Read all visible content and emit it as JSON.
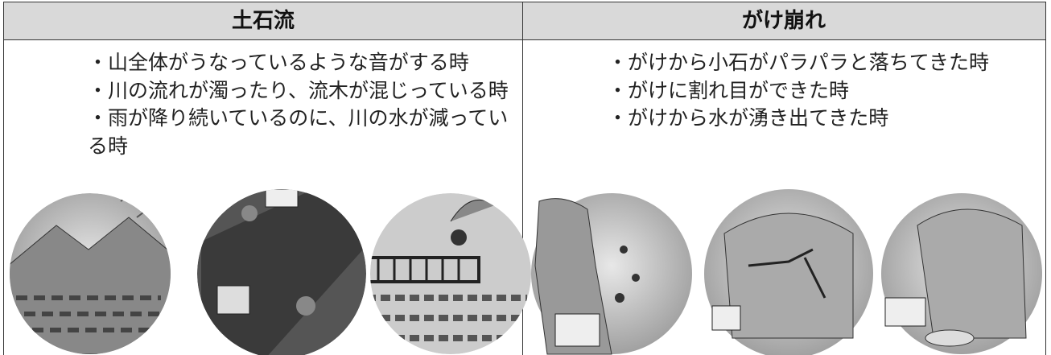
{
  "header": {
    "cells": [
      "土石流",
      "がけ崩れ"
    ]
  },
  "columns": [
    {
      "items": [
        "・山全体がうなっているような音がする時",
        "・川の流れが濁ったり、流木が混じっている時",
        "・雨が降り続いているのに、川の水が減っている時"
      ]
    },
    {
      "items": [
        "・がけから小石がパラパラと落ちてきた時",
        "・がけに割れ目ができた時",
        "・がけから水が湧き出てきた時"
      ]
    }
  ]
}
